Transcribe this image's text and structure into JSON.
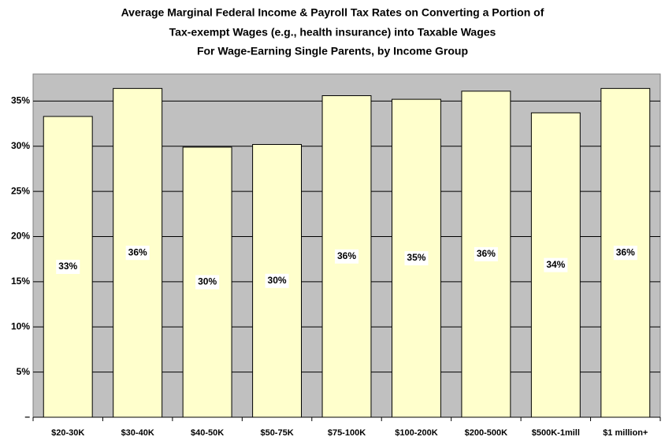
{
  "chart_data": {
    "type": "bar",
    "title": [
      "Average Marginal Federal Income & Payroll Tax Rates on Converting a Portion of",
      "Tax-exempt Wages (e.g., health insurance) into Taxable Wages",
      "For Wage-Earning Single Parents, by Income Group"
    ],
    "categories": [
      "$20-30K",
      "$30-40K",
      "$40-50K",
      "$50-75K",
      "$75-100K",
      "$100-200K",
      "$200-500K",
      "$500K-1mill",
      "$1 million+"
    ],
    "values": [
      33.3,
      36.4,
      29.9,
      30.2,
      35.6,
      35.2,
      36.1,
      33.7,
      36.4
    ],
    "value_labels": [
      "33%",
      "36%",
      "30%",
      "30%",
      "36%",
      "35%",
      "36%",
      "34%",
      "36%"
    ],
    "color": "#ffffcc",
    "ylim": [
      0,
      38
    ],
    "yticks": [
      {
        "value": 0,
        "label": "–"
      },
      {
        "value": 5,
        "label": "5%"
      },
      {
        "value": 10,
        "label": "10%"
      },
      {
        "value": 15,
        "label": "15%"
      },
      {
        "value": 20,
        "label": "20%"
      },
      {
        "value": 25,
        "label": "25%"
      },
      {
        "value": 30,
        "label": "30%"
      },
      {
        "value": 35,
        "label": "35%"
      }
    ],
    "grid": true
  }
}
